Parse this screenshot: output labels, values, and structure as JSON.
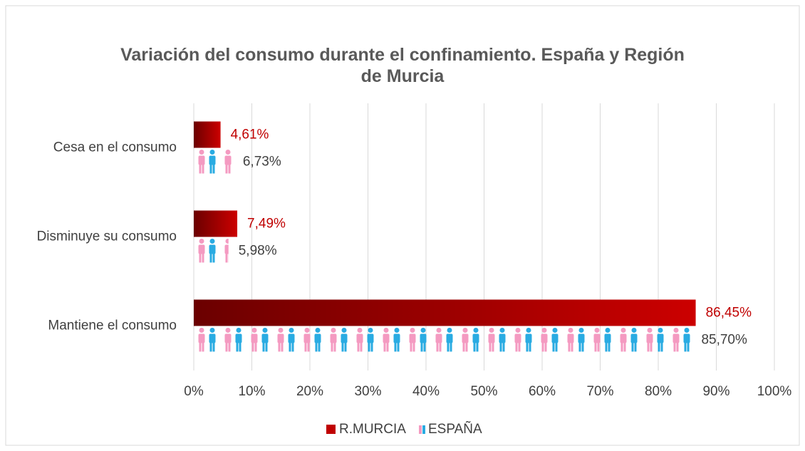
{
  "chart_data": {
    "type": "hbar",
    "title": "Variación del consumo durante el confinamiento. España y Región de Murcia",
    "categories": [
      "Cesa en el consumo",
      "Disminuye su consumo",
      "Mantiene el consumo"
    ],
    "series": [
      {
        "name": "R.MURCIA",
        "color": "#c00000",
        "values": [
          4.61,
          7.49,
          86.45
        ],
        "value_labels": [
          "4,61%",
          "7,49%",
          "86,45%"
        ]
      },
      {
        "name": "ESPAÑA",
        "color": "#29abe2",
        "values": [
          6.73,
          5.98,
          85.7
        ],
        "value_labels": [
          "6,73%",
          "5,98%",
          "85,70%"
        ]
      }
    ],
    "xlim": [
      0,
      100
    ],
    "xticks": [
      {
        "value": 0,
        "label": "0%"
      },
      {
        "value": 10,
        "label": "10%"
      },
      {
        "value": 20,
        "label": "20%"
      },
      {
        "value": 30,
        "label": "30%"
      },
      {
        "value": 40,
        "label": "40%"
      },
      {
        "value": 50,
        "label": "50%"
      },
      {
        "value": 60,
        "label": "60%"
      },
      {
        "value": 70,
        "label": "70%"
      },
      {
        "value": 80,
        "label": "80%"
      },
      {
        "value": 90,
        "label": "90%"
      },
      {
        "value": 100,
        "label": "100%"
      }
    ],
    "grid": true,
    "legend": "bottom"
  }
}
